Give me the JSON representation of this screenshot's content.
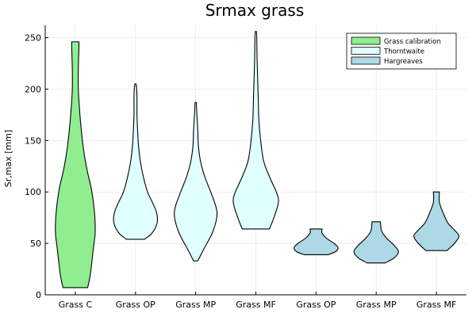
{
  "chart_data": {
    "type": "violin",
    "title": "Srmax grass",
    "xlabel": "",
    "ylabel": "Sr,max [mm]",
    "ylim": [
      0,
      262
    ],
    "yticks": [
      0,
      50,
      100,
      150,
      200,
      250
    ],
    "grid": true,
    "legend_position": "top-right",
    "legend": [
      {
        "name": "Grass calibration",
        "color": "#90ee90"
      },
      {
        "name": "Thorntwaite",
        "color": "#e0ffff"
      },
      {
        "name": "Hargreaves",
        "color": "#add8e6"
      }
    ],
    "categories": [
      "Grass C",
      "Grass OP",
      "Grass MP",
      "Grass MF",
      "Grass OP",
      "Grass MP",
      "Grass MF"
    ],
    "violins": [
      {
        "category": "Grass C",
        "legend": 0,
        "min": 7,
        "max": 246,
        "profile": [
          [
            7,
            0.41
          ],
          [
            20,
            0.5
          ],
          [
            45,
            0.6
          ],
          [
            60,
            0.66
          ],
          [
            75,
            0.65
          ],
          [
            90,
            0.6
          ],
          [
            105,
            0.52
          ],
          [
            120,
            0.4
          ],
          [
            140,
            0.28
          ],
          [
            160,
            0.2
          ],
          [
            180,
            0.14
          ],
          [
            200,
            0.1
          ],
          [
            220,
            0.1
          ],
          [
            240,
            0.12
          ],
          [
            246,
            0.12
          ]
        ]
      },
      {
        "category": "Grass OP",
        "legend": 1,
        "min": 54,
        "max": 205,
        "profile": [
          [
            54,
            0.3
          ],
          [
            60,
            0.55
          ],
          [
            70,
            0.72
          ],
          [
            80,
            0.7
          ],
          [
            90,
            0.56
          ],
          [
            100,
            0.4
          ],
          [
            115,
            0.26
          ],
          [
            130,
            0.16
          ],
          [
            145,
            0.1
          ],
          [
            160,
            0.07
          ],
          [
            175,
            0.05
          ],
          [
            190,
            0.05
          ],
          [
            200,
            0.04
          ],
          [
            205,
            0.02
          ]
        ]
      },
      {
        "category": "Grass MP",
        "legend": 1,
        "min": 33,
        "max": 187,
        "profile": [
          [
            33,
            0.07
          ],
          [
            45,
            0.28
          ],
          [
            60,
            0.55
          ],
          [
            75,
            0.7
          ],
          [
            85,
            0.68
          ],
          [
            100,
            0.5
          ],
          [
            115,
            0.3
          ],
          [
            130,
            0.16
          ],
          [
            145,
            0.09
          ],
          [
            160,
            0.07
          ],
          [
            175,
            0.04
          ],
          [
            187,
            0.02
          ]
        ]
      },
      {
        "category": "Grass MF",
        "legend": 1,
        "min": 64,
        "max": 256,
        "profile": [
          [
            64,
            0.45
          ],
          [
            75,
            0.6
          ],
          [
            90,
            0.75
          ],
          [
            100,
            0.68
          ],
          [
            115,
            0.45
          ],
          [
            130,
            0.26
          ],
          [
            150,
            0.16
          ],
          [
            170,
            0.1
          ],
          [
            190,
            0.08
          ],
          [
            210,
            0.06
          ],
          [
            230,
            0.04
          ],
          [
            250,
            0.03
          ],
          [
            256,
            0.02
          ]
        ]
      },
      {
        "category": "Grass OP",
        "legend": 2,
        "min": 39,
        "max": 64,
        "profile": [
          [
            39,
            0.4
          ],
          [
            42,
            0.65
          ],
          [
            46,
            0.73
          ],
          [
            50,
            0.6
          ],
          [
            55,
            0.35
          ],
          [
            60,
            0.2
          ],
          [
            64,
            0.2
          ]
        ]
      },
      {
        "category": "Grass MP",
        "legend": 2,
        "min": 31,
        "max": 71,
        "profile": [
          [
            31,
            0.3
          ],
          [
            36,
            0.6
          ],
          [
            42,
            0.74
          ],
          [
            48,
            0.6
          ],
          [
            55,
            0.35
          ],
          [
            62,
            0.18
          ],
          [
            71,
            0.14
          ]
        ]
      },
      {
        "category": "Grass MF",
        "legend": 2,
        "min": 43,
        "max": 100,
        "profile": [
          [
            43,
            0.35
          ],
          [
            50,
            0.6
          ],
          [
            57,
            0.75
          ],
          [
            63,
            0.6
          ],
          [
            70,
            0.38
          ],
          [
            80,
            0.22
          ],
          [
            90,
            0.1
          ],
          [
            100,
            0.1
          ]
        ]
      }
    ]
  }
}
